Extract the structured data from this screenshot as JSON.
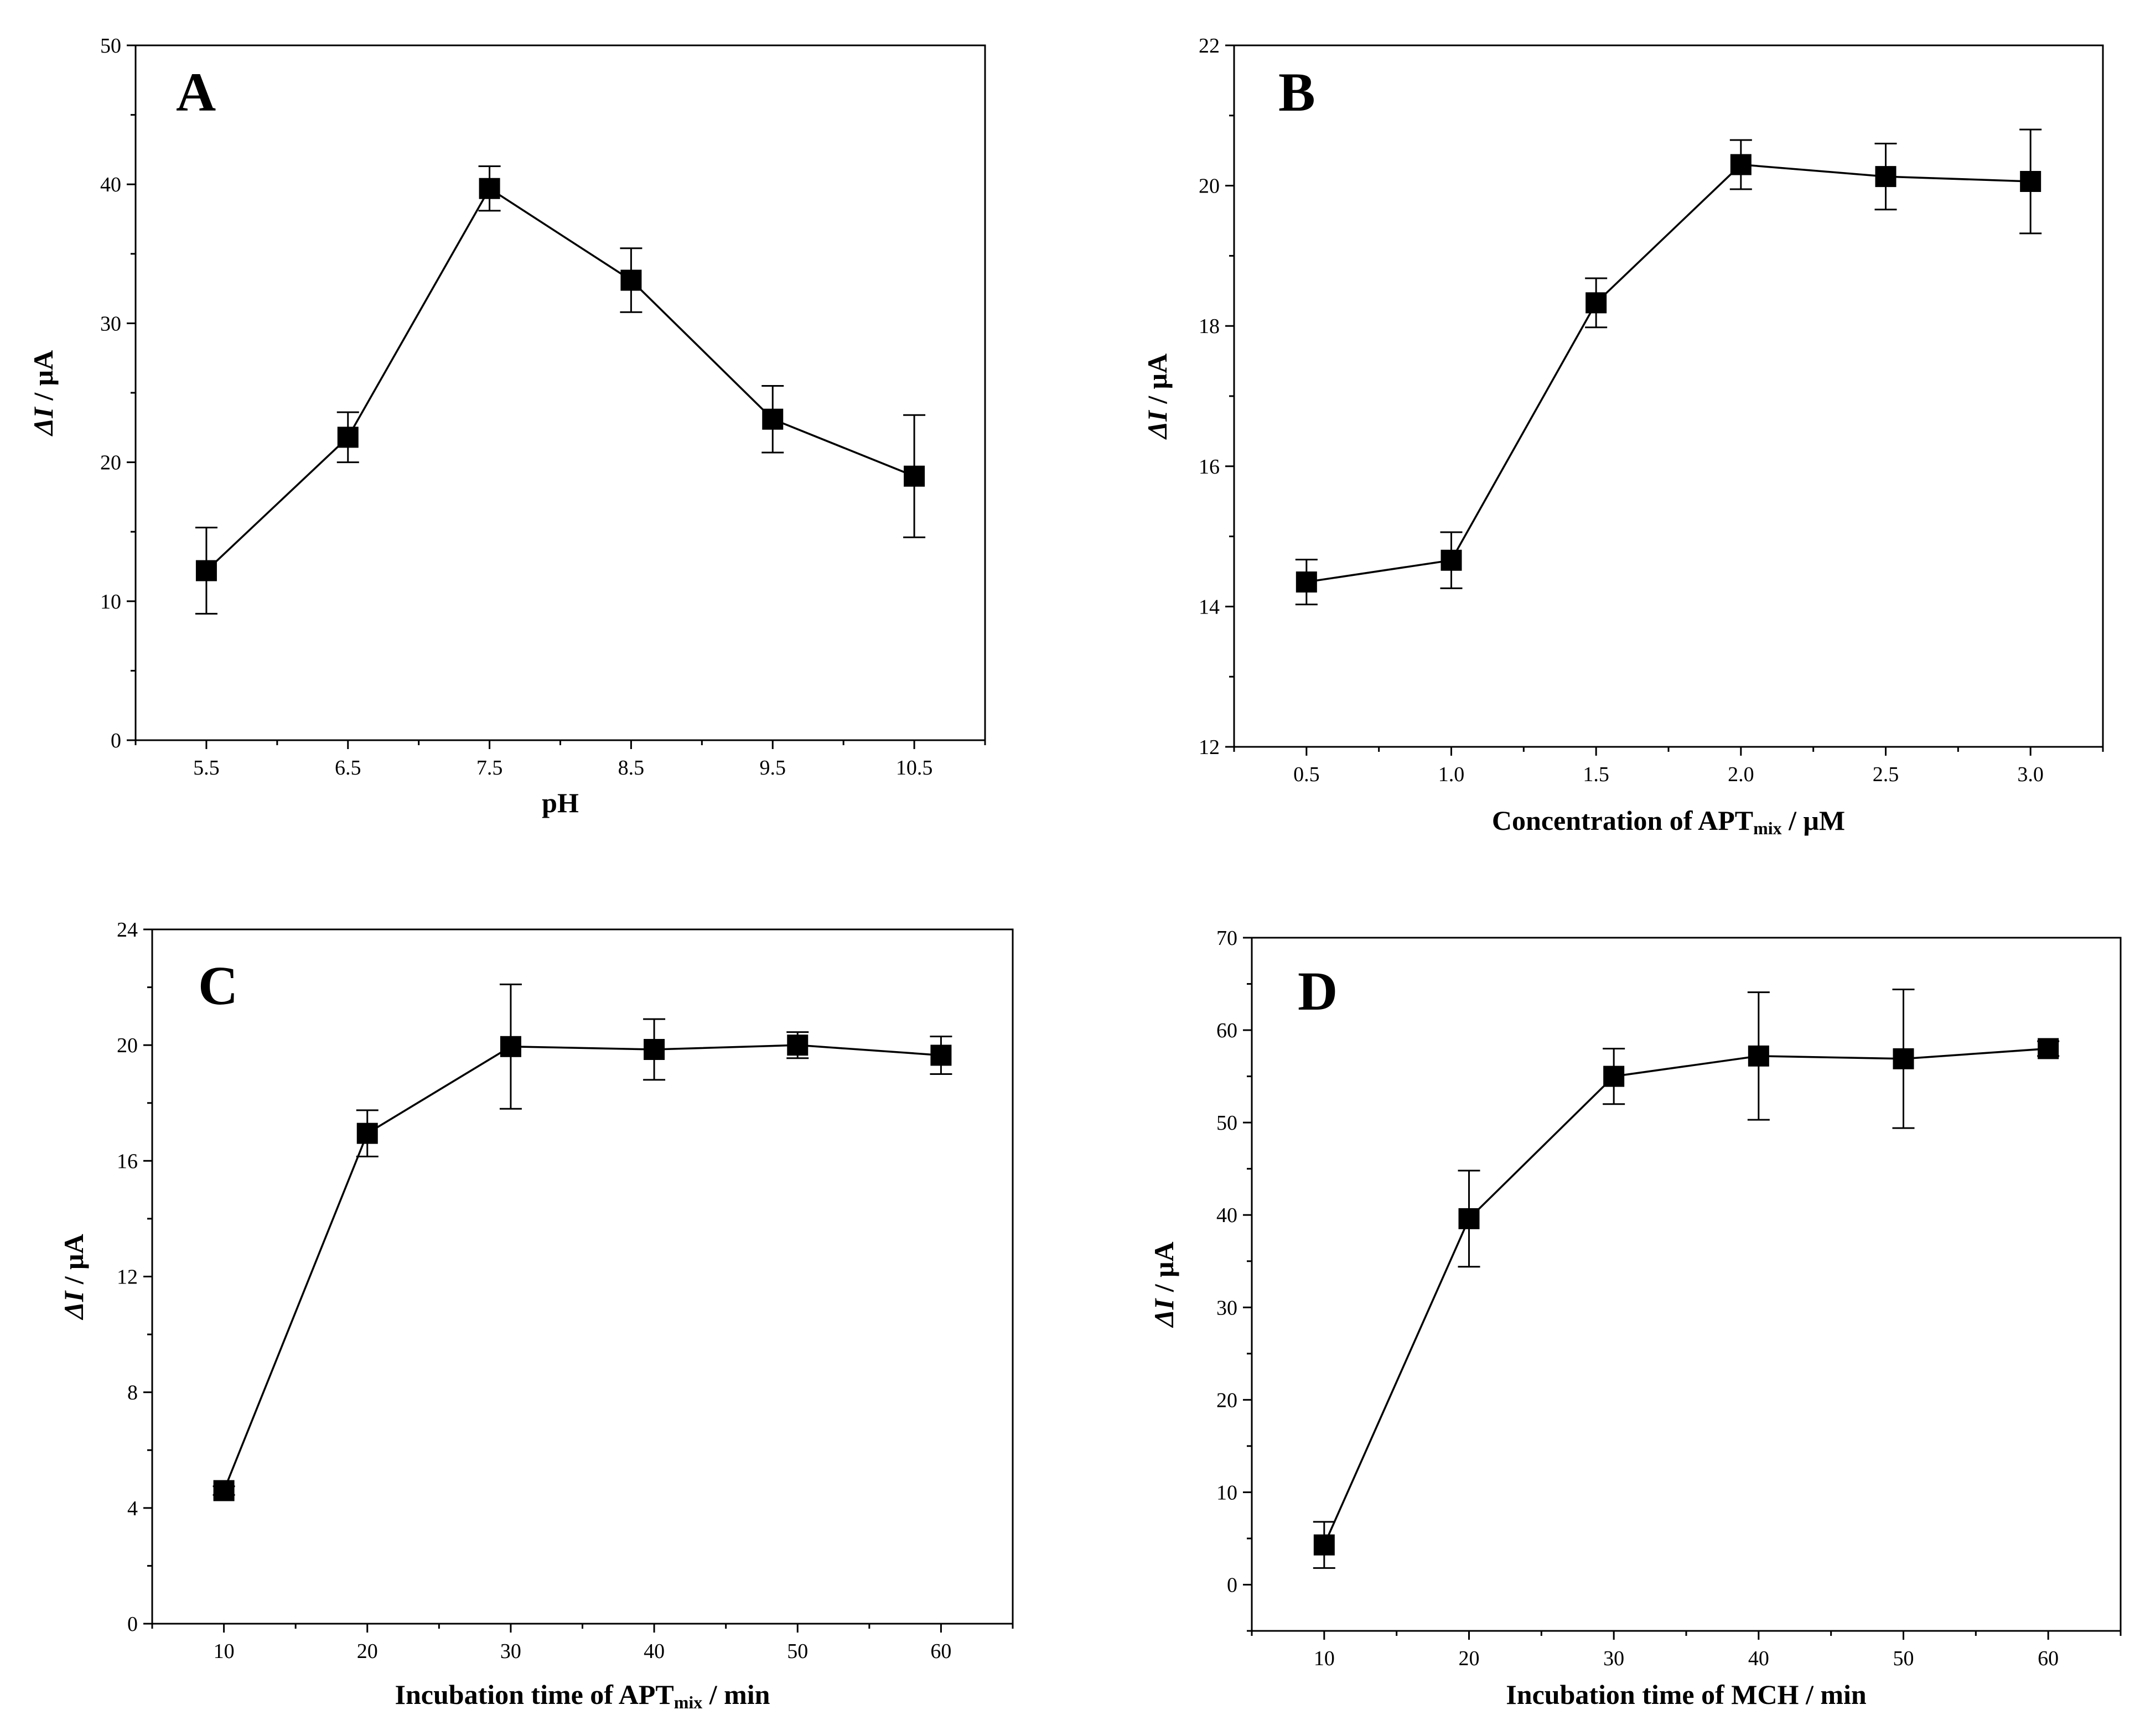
{
  "chart_data": [
    {
      "type": "line",
      "panel_label": "A",
      "title": "",
      "xlabel": "pH",
      "ylabel": "ΔI / μA",
      "ylabel_parts": {
        "delta": "Δ",
        "var": "I",
        "rest": " / μA"
      },
      "xlim": [
        5.0,
        11.0
      ],
      "ylim": [
        0,
        50
      ],
      "x_ticks": [
        "5.5",
        "6.5",
        "7.5",
        "8.5",
        "9.5",
        "10.5"
      ],
      "y_ticks": [
        "0",
        "10",
        "20",
        "30",
        "40",
        "50"
      ],
      "series": [
        {
          "name": "ΔI",
          "marker": "square",
          "x": [
            5.5,
            6.5,
            7.5,
            8.5,
            9.5,
            10.5
          ],
          "values": [
            12.2,
            21.8,
            39.7,
            33.1,
            23.1,
            19.0
          ],
          "errors": [
            3.1,
            1.8,
            1.6,
            2.3,
            2.4,
            4.4
          ]
        }
      ]
    },
    {
      "type": "line",
      "panel_label": "B",
      "title": "",
      "xlabel": "Concentration of APTmix / μM",
      "xlabel_parts": {
        "pre": "Concentration  of  APT",
        "sub": "mix",
        "post": " / μM"
      },
      "ylabel": "ΔI / μA",
      "ylabel_parts": {
        "delta": "Δ",
        "var": "I",
        "rest": " / μA"
      },
      "xlim": [
        0.25,
        3.25
      ],
      "ylim": [
        12,
        22
      ],
      "x_ticks": [
        "0.5",
        "1.0",
        "1.5",
        "2.0",
        "2.5",
        "3.0"
      ],
      "y_ticks": [
        "12",
        "14",
        "16",
        "18",
        "20",
        "22"
      ],
      "series": [
        {
          "name": "ΔI",
          "marker": "square",
          "x": [
            0.5,
            1.0,
            1.5,
            2.0,
            2.5,
            3.0
          ],
          "values": [
            14.35,
            14.66,
            18.33,
            20.3,
            20.13,
            20.06
          ],
          "errors": [
            0.32,
            0.4,
            0.35,
            0.35,
            0.47,
            0.74
          ]
        }
      ]
    },
    {
      "type": "line",
      "panel_label": "C",
      "title": "",
      "xlabel": "Incubation time of APTmix / min",
      "xlabel_parts": {
        "pre": "Incubation  time  of  APT",
        "sub": "mix",
        "post": " / min"
      },
      "ylabel": "ΔI / μA",
      "ylabel_parts": {
        "delta": "Δ",
        "var": "I",
        "rest": " / μA"
      },
      "xlim": [
        5,
        65
      ],
      "ylim": [
        0,
        24
      ],
      "x_ticks": [
        "10",
        "20",
        "30",
        "40",
        "50",
        "60"
      ],
      "y_ticks": [
        "0",
        "4",
        "8",
        "12",
        "16",
        "20",
        "24"
      ],
      "series": [
        {
          "name": "ΔI",
          "marker": "square",
          "x": [
            10,
            20,
            30,
            40,
            50,
            60
          ],
          "values": [
            4.6,
            16.95,
            19.95,
            19.85,
            20.0,
            19.65
          ],
          "errors": [
            0.15,
            0.8,
            2.15,
            1.05,
            0.45,
            0.65
          ]
        }
      ]
    },
    {
      "type": "line",
      "panel_label": "D",
      "title": "",
      "xlabel": "Incubation time of MCH / min",
      "xlabel_parts": {
        "pre": "Incubation  time  of  MCH / min",
        "sub": "",
        "post": ""
      },
      "ylabel": "ΔI / μA",
      "ylabel_parts": {
        "delta": "Δ",
        "var": "I",
        "rest": " / μA"
      },
      "xlim": [
        5,
        65
      ],
      "ylim": [
        -5,
        70
      ],
      "x_ticks": [
        "10",
        "20",
        "30",
        "40",
        "50",
        "60"
      ],
      "y_ticks": [
        "0",
        "10",
        "20",
        "30",
        "40",
        "50",
        "60",
        "70"
      ],
      "series": [
        {
          "name": "ΔI",
          "marker": "square",
          "x": [
            10,
            20,
            30,
            40,
            50,
            60
          ],
          "values": [
            4.3,
            39.6,
            55.0,
            57.2,
            56.9,
            58.0
          ],
          "errors": [
            2.5,
            5.2,
            3.0,
            6.9,
            7.5,
            0.8
          ]
        }
      ]
    }
  ]
}
